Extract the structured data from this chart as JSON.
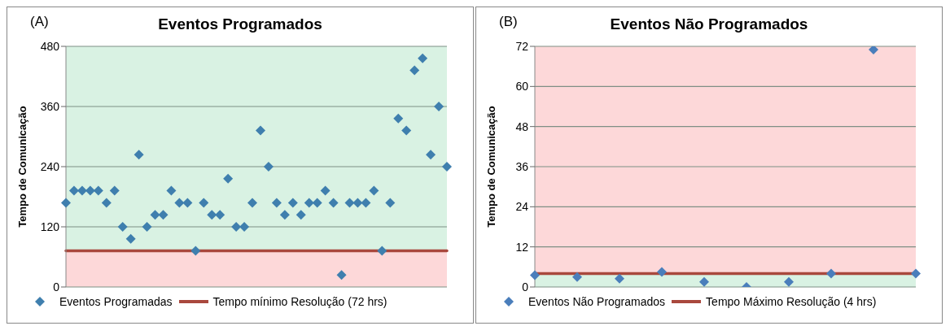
{
  "chart_data": [
    {
      "type": "scatter",
      "title": "Eventos Programados",
      "annotations": [
        "(A)"
      ],
      "ylabel": "Tempo de Comunicação",
      "categories": [
        null,
        null,
        null,
        null,
        null,
        null,
        null,
        null,
        null,
        null,
        null,
        null,
        null,
        null,
        null,
        null,
        null,
        null,
        null,
        null,
        null,
        null,
        null,
        null,
        null,
        null,
        null,
        null,
        null,
        null,
        null,
        null,
        null,
        null,
        null,
        null,
        null,
        null,
        null,
        null,
        null,
        null,
        null,
        null,
        null,
        null,
        null,
        null
      ],
      "series": [
        {
          "name": "Eventos Programadas",
          "type": "scatter",
          "marker": "diamond",
          "color": "#3f7fae",
          "values": [
            168,
            192,
            192,
            192,
            192,
            168,
            192,
            120,
            96,
            264,
            120,
            144,
            144,
            192,
            168,
            168,
            72,
            168,
            144,
            144,
            216,
            120,
            120,
            168,
            312,
            240,
            168,
            144,
            168,
            144,
            168,
            168,
            192,
            168,
            24,
            168,
            168,
            168,
            192,
            72,
            168,
            336,
            312,
            432,
            456,
            264,
            360,
            240
          ]
        },
        {
          "name": "Tempo mínimo Resolução (72 hrs)",
          "type": "line",
          "marker": "none",
          "color": "#a9483d",
          "values": [
            72,
            72,
            72,
            72,
            72,
            72,
            72,
            72,
            72,
            72,
            72,
            72,
            72,
            72,
            72,
            72,
            72,
            72,
            72,
            72,
            72,
            72,
            72,
            72,
            72,
            72,
            72,
            72,
            72,
            72,
            72,
            72,
            72,
            72,
            72,
            72,
            72,
            72,
            72,
            72,
            72,
            72,
            72,
            72,
            72,
            72,
            72,
            72
          ]
        }
      ],
      "bands": [
        {
          "axis": "y",
          "from": 72,
          "to": 480,
          "color": "#d9f2e3"
        },
        {
          "axis": "y",
          "from": 0,
          "to": 72,
          "color": "#fdd8d9"
        }
      ],
      "ylim": [
        0,
        480
      ],
      "yticks": [
        0,
        120,
        240,
        360,
        480
      ],
      "grid": "y",
      "tick_labels": "y",
      "legend": "bottom"
    },
    {
      "type": "scatter",
      "title": "Eventos Não Programados",
      "annotations": [
        "(B)"
      ],
      "ylabel": "Tempo de Comunicação",
      "categories": [
        null,
        null,
        null,
        null,
        null,
        null,
        null,
        null,
        null,
        null
      ],
      "series": [
        {
          "name": "Eventos Não Programados",
          "type": "scatter",
          "marker": "diamond",
          "color": "#4a7ebb",
          "values": [
            3.5,
            3,
            2.5,
            4.5,
            1.5,
            0,
            1.5,
            4,
            71,
            4
          ]
        },
        {
          "name": "Tempo Máximo Resolução (4 hrs)",
          "type": "line",
          "marker": "none",
          "color": "#a9483d",
          "values": [
            4,
            4,
            4,
            4,
            4,
            4,
            4,
            4,
            4,
            4
          ]
        }
      ],
      "bands": [
        {
          "axis": "y",
          "from": 4,
          "to": 72,
          "color": "#fdd8d9"
        },
        {
          "axis": "y",
          "from": 0,
          "to": 4,
          "color": "#d9f2e3"
        }
      ],
      "ylim": [
        0,
        72
      ],
      "yticks": [
        0,
        12,
        24,
        36,
        48,
        60,
        72
      ],
      "grid": "y",
      "tick_labels": "y",
      "legend": "bottom"
    }
  ]
}
